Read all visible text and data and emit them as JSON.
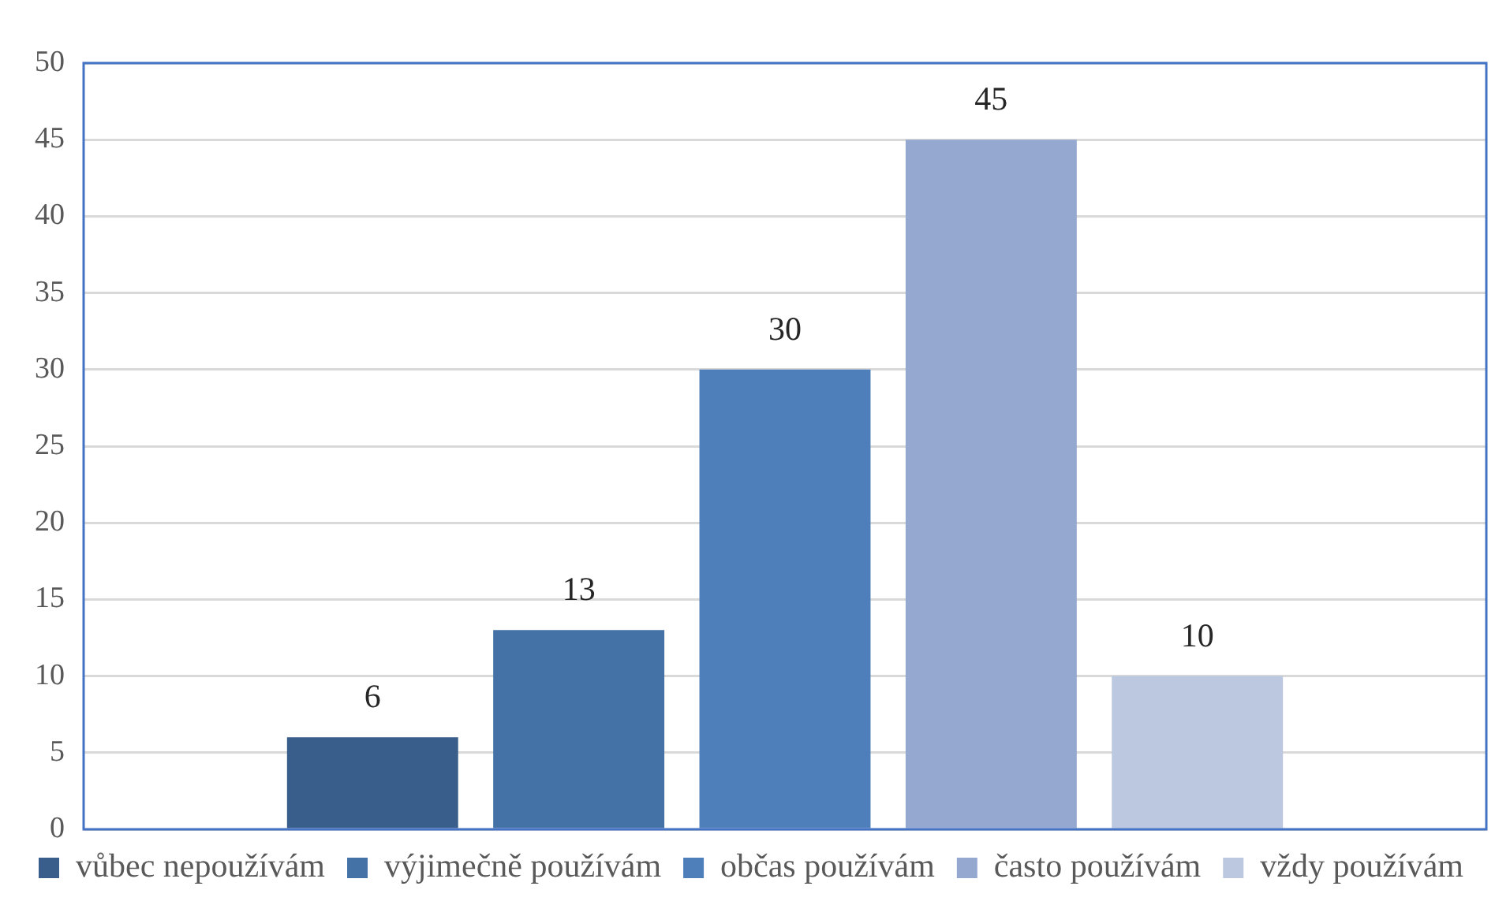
{
  "chart_data": {
    "type": "bar",
    "categories": [
      null
    ],
    "series": [
      {
        "name": "vůbec nepoužívám",
        "color": "#3a5e8c",
        "values": [
          6
        ]
      },
      {
        "name": "výjimečně používám",
        "color": "#4472a6",
        "values": [
          13
        ]
      },
      {
        "name": "občas používám",
        "color": "#4e7fba",
        "values": [
          30
        ]
      },
      {
        "name": "často používám",
        "color": "#95a9d0",
        "values": [
          45
        ]
      },
      {
        "name": "vždy používám",
        "color": "#bbc8e0",
        "values": [
          10
        ]
      }
    ],
    "ylim": [
      0,
      50
    ],
    "yticks": [
      0,
      5,
      10,
      15,
      20,
      25,
      30,
      35,
      40,
      45,
      50
    ],
    "grid": "y",
    "legend": "bottom",
    "data_labels": true
  }
}
